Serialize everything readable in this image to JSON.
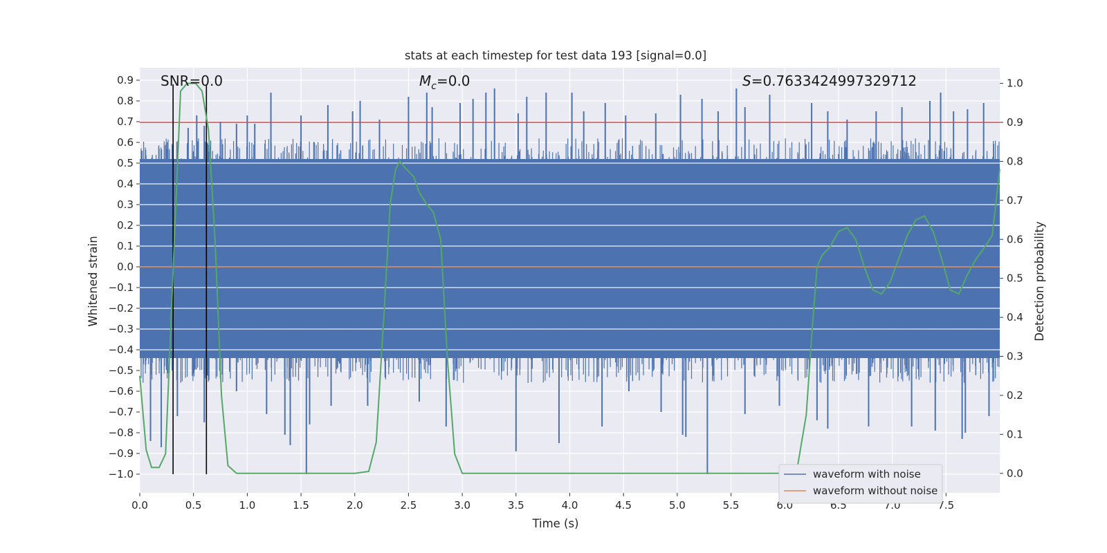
{
  "chart_data": {
    "type": "line",
    "title": "stats at each timestep for test data 193 [signal=0.0]",
    "xlabel": "Time (s)",
    "ylabel_left": "Whitened strain",
    "ylabel_right": "Detection probability",
    "xlim": [
      0.0,
      8.0
    ],
    "ylim_left": [
      -1.09,
      0.96
    ],
    "ylim_right": [
      -0.05,
      1.04
    ],
    "x_ticks": [
      0.0,
      0.5,
      1.0,
      1.5,
      2.0,
      2.5,
      3.0,
      3.5,
      4.0,
      4.5,
      5.0,
      5.5,
      6.0,
      6.5,
      7.0,
      7.5
    ],
    "x_tick_labels": [
      "0.0",
      "0.5",
      "1.0",
      "1.5",
      "2.0",
      "2.5",
      "3.0",
      "3.5",
      "4.0",
      "4.5",
      "5.0",
      "5.5",
      "6.0",
      "6.5",
      "7.0",
      "7.5"
    ],
    "y_left_ticks": [
      0.9,
      0.8,
      0.7,
      0.6,
      0.5,
      0.4,
      0.3,
      0.2,
      0.1,
      0.0,
      -0.1,
      -0.2,
      -0.3,
      -0.4,
      -0.5,
      -0.6,
      -0.7,
      -0.8,
      -0.9,
      -1.0
    ],
    "y_left_tick_labels": [
      "0.9",
      "0.8",
      "0.7",
      "0.6",
      "0.5",
      "0.4",
      "0.3",
      "0.2",
      "0.1",
      "0.0",
      "−0.1",
      "−0.2",
      "−0.3",
      "−0.4",
      "−0.5",
      "−0.6",
      "−0.7",
      "−0.8",
      "−0.9",
      "−1.0"
    ],
    "y_right_ticks": [
      1.0,
      0.9,
      0.8,
      0.7,
      0.6,
      0.5,
      0.4,
      0.3,
      0.2,
      0.1,
      0.0
    ],
    "y_right_tick_labels": [
      "1.0",
      "0.9",
      "0.8",
      "0.7",
      "0.6",
      "0.5",
      "0.4",
      "0.3",
      "0.2",
      "0.1",
      "0.0"
    ],
    "annotations": {
      "snr": "SNR=0.0",
      "mc_symbol": "M",
      "mc_sub": "c",
      "mc_value": "=0.0",
      "s_symbol": "S",
      "s_value": "=0.7633424997329712"
    },
    "threshold": {
      "axis": "right",
      "value": 0.9,
      "color": "#c44e52"
    },
    "vertical_markers": [
      0.31,
      0.62
    ],
    "noise_series": {
      "name": "waveform with noise",
      "color": "#4c72b0",
      "fill_low": -0.44,
      "fill_high": 0.52,
      "spikes_up": [
        [
          0.02,
          0.56
        ],
        [
          0.25,
          0.57
        ],
        [
          0.45,
          0.67
        ],
        [
          0.53,
          0.73
        ],
        [
          0.6,
          0.68
        ],
        [
          0.75,
          0.7
        ],
        [
          0.9,
          0.69
        ],
        [
          1.0,
          0.73
        ],
        [
          1.07,
          0.69
        ],
        [
          1.22,
          0.84
        ],
        [
          1.5,
          0.73
        ],
        [
          1.75,
          0.78
        ],
        [
          1.98,
          0.75
        ],
        [
          2.05,
          0.8
        ],
        [
          2.23,
          0.71
        ],
        [
          2.5,
          0.82
        ],
        [
          2.67,
          0.84
        ],
        [
          2.72,
          0.77
        ],
        [
          2.98,
          0.79
        ],
        [
          3.1,
          0.81
        ],
        [
          3.22,
          0.84
        ],
        [
          3.3,
          0.86
        ],
        [
          3.52,
          0.74
        ],
        [
          3.6,
          0.82
        ],
        [
          3.78,
          0.84
        ],
        [
          4.02,
          0.84
        ],
        [
          4.13,
          0.75
        ],
        [
          4.33,
          0.79
        ],
        [
          4.52,
          0.73
        ],
        [
          4.8,
          0.74
        ],
        [
          5.03,
          0.83
        ],
        [
          5.23,
          0.81
        ],
        [
          5.38,
          0.75
        ],
        [
          5.55,
          0.86
        ],
        [
          5.63,
          0.77
        ],
        [
          5.86,
          0.83
        ],
        [
          6.25,
          0.79
        ],
        [
          6.4,
          0.75
        ],
        [
          6.58,
          0.71
        ],
        [
          6.85,
          0.75
        ],
        [
          7.09,
          0.77
        ],
        [
          7.35,
          0.8
        ],
        [
          7.45,
          0.84
        ],
        [
          7.57,
          0.75
        ],
        [
          7.7,
          0.76
        ],
        [
          7.85,
          0.79
        ]
      ],
      "spikes_down": [
        [
          0.1,
          -0.84
        ],
        [
          0.2,
          -0.87
        ],
        [
          0.35,
          -0.72
        ],
        [
          0.6,
          -0.75
        ],
        [
          0.9,
          -0.6
        ],
        [
          1.18,
          -0.71
        ],
        [
          1.35,
          -0.81
        ],
        [
          1.4,
          -0.86
        ],
        [
          1.55,
          -1.0
        ],
        [
          1.58,
          -0.76
        ],
        [
          1.78,
          -0.67
        ],
        [
          2.12,
          -0.67
        ],
        [
          2.6,
          -0.65
        ],
        [
          2.85,
          -0.77
        ],
        [
          3.5,
          -0.89
        ],
        [
          3.9,
          -0.85
        ],
        [
          4.3,
          -0.77
        ],
        [
          4.55,
          -0.6
        ],
        [
          4.85,
          -0.7
        ],
        [
          5.05,
          -0.81
        ],
        [
          5.08,
          -0.82
        ],
        [
          5.28,
          -1.0
        ],
        [
          5.63,
          -0.71
        ],
        [
          5.95,
          -0.67
        ],
        [
          6.3,
          -0.74
        ],
        [
          6.4,
          -0.78
        ],
        [
          6.78,
          -0.77
        ],
        [
          7.18,
          -0.77
        ],
        [
          7.4,
          -0.79
        ],
        [
          7.65,
          -0.83
        ],
        [
          7.68,
          -0.8
        ],
        [
          7.9,
          -0.72
        ]
      ]
    },
    "clean_series": {
      "name": "waveform without noise",
      "color": "#dd8452",
      "value": 0.0
    },
    "probability_series": {
      "name": "detection probability",
      "color": "#55a868",
      "axis": "right",
      "x": [
        0.0,
        0.06,
        0.11,
        0.18,
        0.24,
        0.31,
        0.38,
        0.44,
        0.52,
        0.58,
        0.64,
        0.7,
        0.76,
        0.82,
        0.9,
        1.0,
        1.5,
        2.0,
        2.13,
        2.2,
        2.27,
        2.33,
        2.38,
        2.42,
        2.48,
        2.55,
        2.6,
        2.67,
        2.73,
        2.8,
        2.86,
        2.93,
        3.0,
        3.1,
        4.0,
        5.0,
        6.0,
        6.12,
        6.2,
        6.25,
        6.3,
        6.35,
        6.42,
        6.5,
        6.58,
        6.66,
        6.74,
        6.82,
        6.9,
        6.98,
        7.06,
        7.14,
        7.22,
        7.3,
        7.38,
        7.46,
        7.54,
        7.62,
        7.7,
        7.78,
        7.86,
        7.93,
        8.0
      ],
      "y": [
        0.25,
        0.06,
        0.015,
        0.015,
        0.05,
        0.52,
        0.98,
        1.0,
        1.0,
        0.98,
        0.88,
        0.6,
        0.2,
        0.02,
        0.0,
        0.0,
        0.0,
        0.0,
        0.005,
        0.08,
        0.4,
        0.69,
        0.78,
        0.8,
        0.78,
        0.76,
        0.72,
        0.69,
        0.67,
        0.6,
        0.3,
        0.05,
        0.0,
        0.0,
        0.0,
        0.0,
        0.0,
        0.02,
        0.15,
        0.35,
        0.53,
        0.56,
        0.58,
        0.62,
        0.63,
        0.6,
        0.53,
        0.47,
        0.46,
        0.49,
        0.55,
        0.61,
        0.65,
        0.66,
        0.62,
        0.55,
        0.47,
        0.46,
        0.51,
        0.55,
        0.58,
        0.61,
        0.78
      ]
    },
    "legend": {
      "position": "lower-right",
      "entries": [
        {
          "label": "waveform with noise",
          "color": "#4c72b0"
        },
        {
          "label": "waveform without noise",
          "color": "#dd8452"
        }
      ]
    },
    "style": {
      "axes_bg": "#eaeaf2",
      "grid": "#ffffff",
      "marker_color": "#000000"
    }
  }
}
